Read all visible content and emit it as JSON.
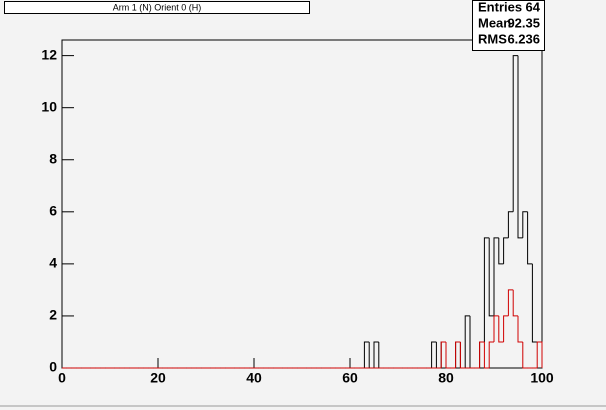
{
  "chart_data": {
    "type": "histogram",
    "title": "Arm 1 (N) Orient 0 (H)",
    "stats": [
      {
        "label": "Entries",
        "value": 64
      },
      {
        "label": "Mean",
        "value": 92.35
      },
      {
        "label": "RMS",
        "value": 6.236
      }
    ],
    "bins": [
      0,
      1,
      2,
      3,
      4,
      5,
      6,
      7,
      8,
      9,
      10,
      11,
      12,
      13,
      14,
      15,
      16,
      17,
      18,
      19,
      20,
      21,
      22,
      23,
      24,
      25,
      26,
      27,
      28,
      29,
      30,
      31,
      32,
      33,
      34,
      35,
      36,
      37,
      38,
      39,
      40,
      41,
      42,
      43,
      44,
      45,
      46,
      47,
      48,
      49,
      50,
      51,
      52,
      53,
      54,
      55,
      56,
      57,
      58,
      59,
      60,
      61,
      62,
      63,
      64,
      65,
      66,
      67,
      68,
      69,
      70,
      71,
      72,
      73,
      74,
      75,
      76,
      77,
      78,
      79,
      80,
      81,
      82,
      83,
      84,
      85,
      86,
      87,
      88,
      89,
      90,
      91,
      92,
      93,
      94,
      95,
      96,
      97,
      98,
      99,
      100
    ],
    "series": [
      {
        "color": "#000000",
        "values": [
          0,
          0,
          0,
          0,
          0,
          0,
          0,
          0,
          0,
          0,
          0,
          0,
          0,
          0,
          0,
          0,
          0,
          0,
          0,
          0,
          0,
          0,
          0,
          0,
          0,
          0,
          0,
          0,
          0,
          0,
          0,
          0,
          0,
          0,
          0,
          0,
          0,
          0,
          0,
          0,
          0,
          0,
          0,
          0,
          0,
          0,
          0,
          0,
          0,
          0,
          0,
          0,
          0,
          0,
          0,
          0,
          0,
          0,
          0,
          0,
          0,
          0,
          0,
          1,
          0,
          1,
          0,
          0,
          0,
          0,
          0,
          0,
          0,
          0,
          0,
          0,
          0,
          1,
          0,
          1,
          0,
          0,
          1,
          0,
          2,
          0,
          0,
          1,
          5,
          2,
          5,
          4,
          5,
          6,
          12,
          5,
          6,
          4,
          1,
          1
        ]
      },
      {
        "color": "#d00000",
        "values": [
          0,
          0,
          0,
          0,
          0,
          0,
          0,
          0,
          0,
          0,
          0,
          0,
          0,
          0,
          0,
          0,
          0,
          0,
          0,
          0,
          0,
          0,
          0,
          0,
          0,
          0,
          0,
          0,
          0,
          0,
          0,
          0,
          0,
          0,
          0,
          0,
          0,
          0,
          0,
          0,
          0,
          0,
          0,
          0,
          0,
          0,
          0,
          0,
          0,
          0,
          0,
          0,
          0,
          0,
          0,
          0,
          0,
          0,
          0,
          0,
          0,
          0,
          0,
          0,
          0,
          0,
          0,
          0,
          0,
          0,
          0,
          0,
          0,
          0,
          0,
          0,
          0,
          0,
          0,
          1,
          0,
          0,
          1,
          0,
          0,
          0,
          0,
          1,
          0,
          1,
          2,
          1,
          2,
          3,
          2,
          1,
          0,
          0,
          0,
          1
        ]
      }
    ],
    "xlim": [
      0,
      100
    ],
    "xticks": [
      0,
      20,
      40,
      60,
      80,
      100
    ],
    "ylim": [
      0,
      12.6
    ],
    "yticks": [
      0,
      2,
      4,
      6,
      8,
      10,
      12
    ]
  }
}
